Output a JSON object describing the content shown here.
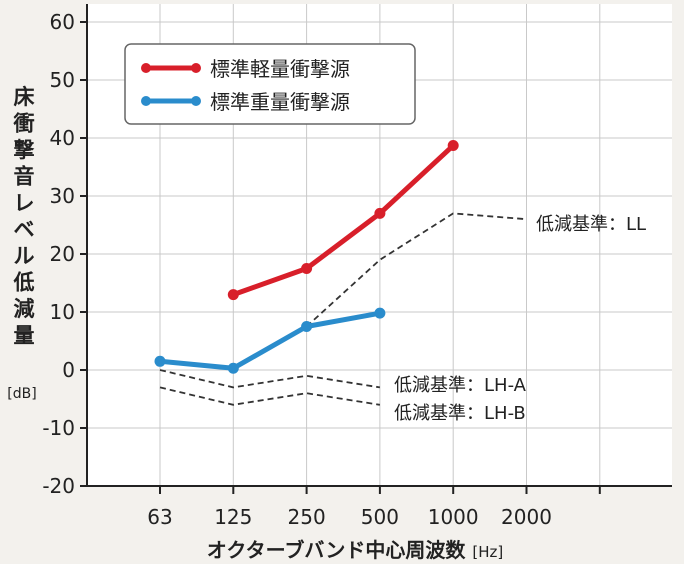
{
  "chart_data": {
    "type": "line",
    "ylabel": "床衝撃音レベル低減量",
    "ylabel_unit": "[dB]",
    "xlabel": "オクターブバンド中心周波数",
    "xlabel_unit": "[Hz]",
    "categories": [
      "63",
      "125",
      "250",
      "500",
      "1000",
      "2000"
    ],
    "yticks": [
      60,
      50,
      40,
      30,
      20,
      10,
      0,
      -10,
      -20
    ],
    "ylim": [
      -20,
      63
    ],
    "grid": true,
    "legend_position": "top-left",
    "series": [
      {
        "name": "標準軽量衝撃源",
        "color": "#d81f2a",
        "style": "solid",
        "x": [
          "125",
          "250",
          "500",
          "1000"
        ],
        "values": [
          13,
          17.5,
          27,
          38.7
        ]
      },
      {
        "name": "標準重量衝撃源",
        "color": "#2a8ccc",
        "style": "solid",
        "x": [
          "63",
          "125",
          "250",
          "500"
        ],
        "values": [
          1.5,
          0.3,
          7.5,
          9.8
        ]
      }
    ],
    "reference_lines": [
      {
        "label": "低減基準：LL",
        "style": "dashed",
        "x": [
          "250",
          "500",
          "1000",
          "2000"
        ],
        "values": [
          7.5,
          19,
          27,
          26
        ]
      },
      {
        "label": "低減基準：LH-A",
        "style": "dashed",
        "x": [
          "63",
          "125",
          "250",
          "500"
        ],
        "values": [
          0,
          -3,
          -1,
          -3
        ]
      },
      {
        "label": "低減基準：LH-B",
        "style": "dashed",
        "x": [
          "63",
          "125",
          "250",
          "500"
        ],
        "values": [
          -3,
          -6,
          -4,
          -6
        ]
      }
    ]
  }
}
